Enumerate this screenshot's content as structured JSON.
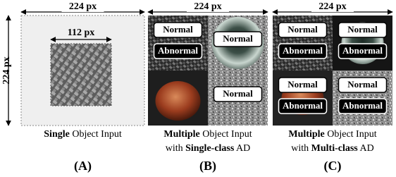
{
  "panels": [
    {
      "width_label": "224 px",
      "height_label": "224 px",
      "inner_label": "112 px",
      "caption": [
        [
          {
            "text": "Single",
            "bold": true
          },
          {
            "text": " Object Input",
            "bold": false
          }
        ]
      ],
      "tag": "(A)"
    },
    {
      "width_label": "224 px",
      "tiles": [
        [
          "Normal",
          "Abnormal"
        ],
        [
          "Normal"
        ],
        [],
        [
          "Normal"
        ]
      ],
      "caption": [
        [
          {
            "text": "Multiple",
            "bold": true
          },
          {
            "text": " Object Input",
            "bold": false
          }
        ],
        [
          {
            "text": "with ",
            "bold": false
          },
          {
            "text": "Single-class",
            "bold": true
          },
          {
            "text": " AD",
            "bold": false
          }
        ]
      ],
      "tag": "(B)"
    },
    {
      "width_label": "224 px",
      "tiles": [
        [
          "Normal",
          "Abnormal"
        ],
        [
          "Normal",
          "Abnormal"
        ],
        [
          "Normal",
          "Abnormal"
        ],
        [
          "Normal",
          "Abnormal"
        ]
      ],
      "caption": [
        [
          {
            "text": "Multiple",
            "bold": true
          },
          {
            "text": " Object Input",
            "bold": false
          }
        ],
        [
          {
            "text": "with ",
            "bold": false
          },
          {
            "text": "Multi-class",
            "bold": true
          },
          {
            "text": " AD",
            "bold": false
          }
        ]
      ],
      "tag": "(C)"
    }
  ]
}
